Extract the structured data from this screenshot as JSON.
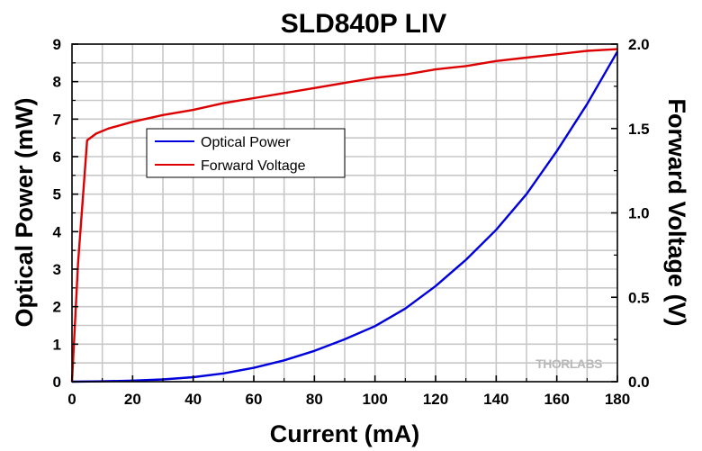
{
  "chart_data": {
    "type": "line",
    "title": "SLD840P LIV",
    "xlabel": "Current (mA)",
    "ylabel": "Optical Power (mW)",
    "y2label": "Forward Voltage (V)",
    "xlim": [
      0,
      180
    ],
    "ylim": [
      0,
      9
    ],
    "y2lim": [
      0,
      2.0
    ],
    "xticks": [
      "0",
      "20",
      "40",
      "60",
      "80",
      "100",
      "120",
      "140",
      "160",
      "180"
    ],
    "yticks": [
      "0",
      "1",
      "2",
      "3",
      "4",
      "5",
      "6",
      "7",
      "8",
      "9"
    ],
    "y2ticks": [
      "0.0",
      "0.5",
      "1.0",
      "1.5",
      "2.0"
    ],
    "grid": true,
    "legend_position": "upper-left",
    "watermark": "THORLABS",
    "series": [
      {
        "name": "Optical Power",
        "axis": "left",
        "color": "#0000dd",
        "x": [
          0,
          10,
          20,
          30,
          40,
          50,
          60,
          70,
          80,
          90,
          100,
          110,
          120,
          130,
          140,
          150,
          160,
          170,
          180
        ],
        "y": [
          0,
          0.01,
          0.03,
          0.06,
          0.12,
          0.22,
          0.37,
          0.57,
          0.82,
          1.13,
          1.48,
          1.95,
          2.55,
          3.25,
          4.05,
          5.0,
          6.15,
          7.4,
          8.8
        ]
      },
      {
        "name": "Forward Voltage",
        "axis": "right",
        "color": "#dd0000",
        "x": [
          0,
          2,
          5,
          8,
          12,
          20,
          30,
          40,
          50,
          60,
          70,
          80,
          90,
          100,
          110,
          120,
          130,
          140,
          150,
          160,
          170,
          180
        ],
        "y": [
          0,
          0.7,
          1.43,
          1.47,
          1.5,
          1.54,
          1.58,
          1.61,
          1.65,
          1.68,
          1.71,
          1.74,
          1.77,
          1.8,
          1.82,
          1.85,
          1.87,
          1.9,
          1.92,
          1.94,
          1.96,
          1.97
        ]
      }
    ]
  }
}
